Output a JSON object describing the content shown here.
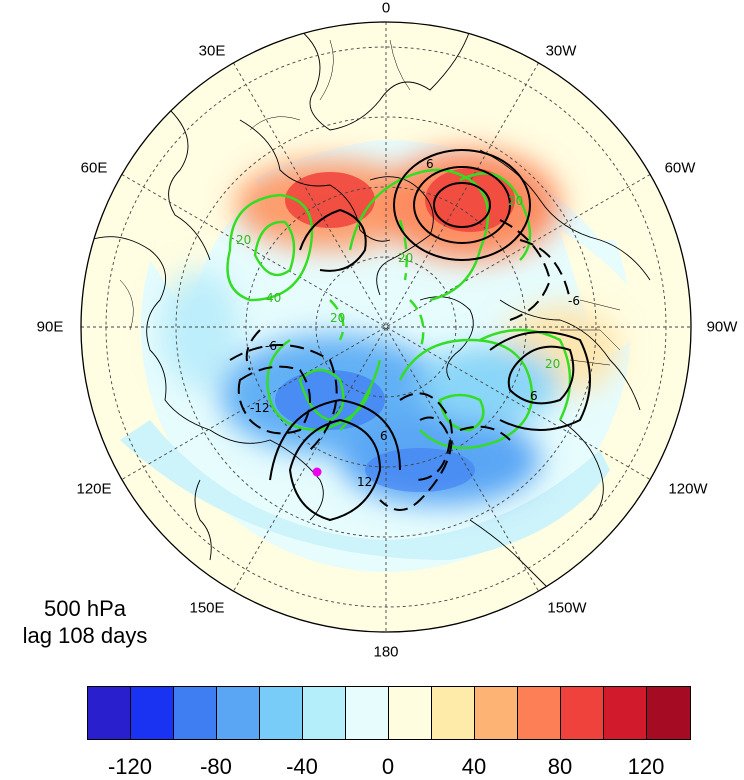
{
  "lon_labels": {
    "top": "0",
    "top_left": "30E",
    "top_right": "30W",
    "upper_left": "60E",
    "upper_right": "60W",
    "left": "90E",
    "right": "90W",
    "lower_left": "120E",
    "lower_right": "120W",
    "bottom_left": "150E",
    "bottom_right": "150W",
    "bottom": "180"
  },
  "map_title": {
    "level": "500 hPa",
    "lag": "lag 108 days"
  },
  "contour_labels": {
    "green": [
      "20",
      "40",
      "20",
      "20",
      "20",
      "20"
    ],
    "black": [
      "6",
      "-6",
      "6",
      "-6",
      "12",
      "-12",
      "6"
    ]
  },
  "colorbar": {
    "colors": [
      "#2a1fcc",
      "#1a33f2",
      "#3f7df2",
      "#5aa6f5",
      "#77cdf7",
      "#b4eefb",
      "#e6fcfd",
      "#fffde0",
      "#feeaa9",
      "#fdb373",
      "#fd7f55",
      "#f0423c",
      "#d11a2b",
      "#a50b23"
    ],
    "ticks": [
      "-120",
      "-80",
      "-40",
      "0",
      "40",
      "80",
      "120"
    ]
  },
  "marker_color": "#ee00ee"
}
